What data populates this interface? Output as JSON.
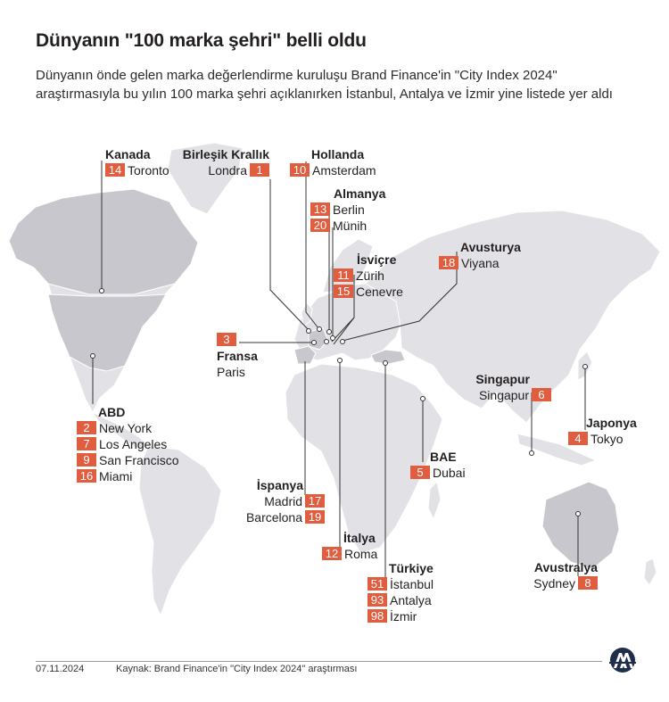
{
  "header": {
    "title": "Dünyanın \"100 marka şehri\" belli oldu",
    "subtitle": "Dünyanın önde gelen marka değerlendirme kuruluşu Brand Finance'in \"City Index 2024\" araştırmasıyla bu yılın 100 marka şehri açıklanırken İstanbul, Antalya ve İzmir yine listede yer aldı"
  },
  "colors": {
    "accent": "#e15d3f",
    "land": "#e2e1e6",
    "land_highlight": "#c8c7ce",
    "line": "#333333"
  },
  "groups": {
    "kanada": {
      "country": "Kanada",
      "cities": [
        {
          "rank": "14",
          "name": "Toronto"
        }
      ]
    },
    "birlesik_krallik": {
      "country": "Birleşik Krallık",
      "cities": [
        {
          "rank": "1",
          "name": "Londra"
        }
      ]
    },
    "hollanda": {
      "country": "Hollanda",
      "cities": [
        {
          "rank": "10",
          "name": "Amsterdam"
        }
      ]
    },
    "almanya": {
      "country": "Almanya",
      "cities": [
        {
          "rank": "13",
          "name": "Berlin"
        },
        {
          "rank": "20",
          "name": "Münih"
        }
      ]
    },
    "isvicre": {
      "country": "İsviçre",
      "cities": [
        {
          "rank": "11",
          "name": "Zürih"
        },
        {
          "rank": "15",
          "name": "Cenevre"
        }
      ]
    },
    "avusturya": {
      "country": "Avusturya",
      "cities": [
        {
          "rank": "18",
          "name": "Viyana"
        }
      ]
    },
    "fransa": {
      "country": "Fransa",
      "cities": [
        {
          "rank": "3",
          "name": "Paris"
        }
      ]
    },
    "abd": {
      "country": "ABD",
      "cities": [
        {
          "rank": "2",
          "name": "New York"
        },
        {
          "rank": "7",
          "name": "Los Angeles"
        },
        {
          "rank": "9",
          "name": "San Francisco"
        },
        {
          "rank": "16",
          "name": "Miami"
        }
      ]
    },
    "singapur": {
      "country": "Singapur",
      "cities": [
        {
          "rank": "6",
          "name": "Singapur"
        }
      ]
    },
    "japonya": {
      "country": "Japonya",
      "cities": [
        {
          "rank": "4",
          "name": "Tokyo"
        }
      ]
    },
    "bae": {
      "country": "BAE",
      "cities": [
        {
          "rank": "5",
          "name": "Dubai"
        }
      ]
    },
    "ispanya": {
      "country": "İspanya",
      "cities": [
        {
          "rank": "17",
          "name": "Madrid"
        },
        {
          "rank": "19",
          "name": "Barcelona"
        }
      ]
    },
    "italya": {
      "country": "İtalya",
      "cities": [
        {
          "rank": "12",
          "name": "Roma"
        }
      ]
    },
    "turkiye": {
      "country": "Türkiye",
      "cities": [
        {
          "rank": "51",
          "name": "İstanbul"
        },
        {
          "rank": "93",
          "name": "Antalya"
        },
        {
          "rank": "98",
          "name": "İzmir"
        }
      ]
    },
    "avustralya": {
      "country": "Avustralya",
      "cities": [
        {
          "rank": "8",
          "name": "Sydney"
        }
      ]
    }
  },
  "footer": {
    "date": "07.11.2024",
    "source": "Kaynak: Brand Finance'in \"City Index 2024\" araştırması",
    "logo": "AA"
  }
}
